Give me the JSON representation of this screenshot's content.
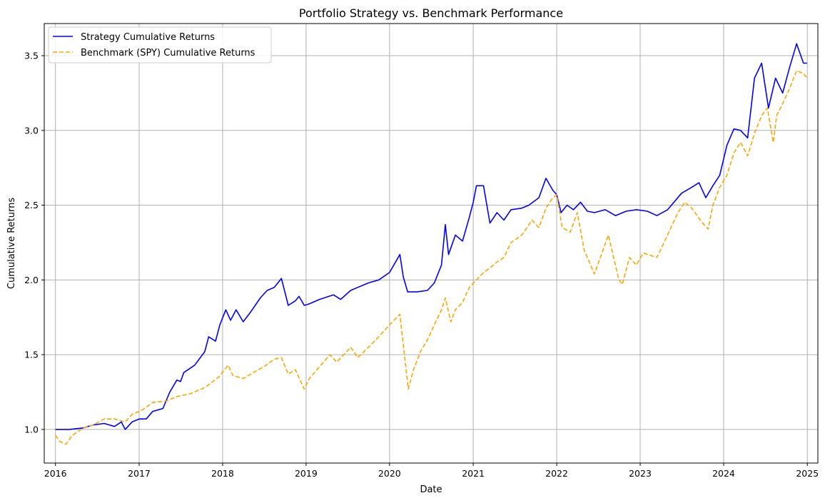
{
  "chart_data": {
    "type": "line",
    "title": "Portfolio Strategy vs. Benchmark Performance",
    "xlabel": "Date",
    "ylabel": "Cumulative Returns",
    "xlim": [
      "2015-11-13",
      "2025-02-16"
    ],
    "ylim": [
      0.775,
      3.715
    ],
    "grid": true,
    "legend_position": "upper-left",
    "x_ticks": [
      "2016",
      "2017",
      "2018",
      "2019",
      "2020",
      "2021",
      "2022",
      "2023",
      "2024",
      "2025"
    ],
    "y_ticks": [
      "1.0",
      "1.5",
      "2.0",
      "2.5",
      "3.0",
      "3.5"
    ],
    "series": [
      {
        "name": "Strategy Cumulative Returns",
        "color": "#0000ff",
        "style": "solid",
        "points": [
          [
            "2016-01-01",
            1.0
          ],
          [
            "2016-03-01",
            1.0
          ],
          [
            "2016-05-01",
            1.01
          ],
          [
            "2016-06-15",
            1.03
          ],
          [
            "2016-08-01",
            1.04
          ],
          [
            "2016-09-15",
            1.02
          ],
          [
            "2016-10-15",
            1.05
          ],
          [
            "2016-11-01",
            1.0
          ],
          [
            "2016-12-01",
            1.05
          ],
          [
            "2017-01-01",
            1.07
          ],
          [
            "2017-02-01",
            1.07
          ],
          [
            "2017-03-01",
            1.12
          ],
          [
            "2017-04-15",
            1.14
          ],
          [
            "2017-05-15",
            1.25
          ],
          [
            "2017-06-15",
            1.33
          ],
          [
            "2017-07-01",
            1.32
          ],
          [
            "2017-07-15",
            1.38
          ],
          [
            "2017-09-01",
            1.43
          ],
          [
            "2017-10-15",
            1.52
          ],
          [
            "2017-11-01",
            1.62
          ],
          [
            "2017-12-01",
            1.59
          ],
          [
            "2017-12-20",
            1.7
          ],
          [
            "2018-01-15",
            1.8
          ],
          [
            "2018-02-05",
            1.73
          ],
          [
            "2018-03-01",
            1.8
          ],
          [
            "2018-04-01",
            1.72
          ],
          [
            "2018-05-01",
            1.78
          ],
          [
            "2018-06-15",
            1.88
          ],
          [
            "2018-07-15",
            1.93
          ],
          [
            "2018-08-15",
            1.95
          ],
          [
            "2018-09-15",
            2.01
          ],
          [
            "2018-10-15",
            1.83
          ],
          [
            "2018-11-15",
            1.86
          ],
          [
            "2018-12-01",
            1.89
          ],
          [
            "2018-12-24",
            1.83
          ],
          [
            "2019-01-15",
            1.84
          ],
          [
            "2019-03-01",
            1.87
          ],
          [
            "2019-05-01",
            1.9
          ],
          [
            "2019-06-01",
            1.87
          ],
          [
            "2019-07-15",
            1.93
          ],
          [
            "2019-08-15",
            1.95
          ],
          [
            "2019-10-01",
            1.98
          ],
          [
            "2019-11-15",
            2.0
          ],
          [
            "2020-01-01",
            2.05
          ],
          [
            "2020-02-15",
            2.17
          ],
          [
            "2020-03-01",
            2.02
          ],
          [
            "2020-03-20",
            1.92
          ],
          [
            "2020-05-01",
            1.92
          ],
          [
            "2020-06-15",
            1.93
          ],
          [
            "2020-07-15",
            1.98
          ],
          [
            "2020-08-15",
            2.1
          ],
          [
            "2020-09-01",
            2.37
          ],
          [
            "2020-09-15",
            2.17
          ],
          [
            "2020-10-15",
            2.3
          ],
          [
            "2020-11-15",
            2.26
          ],
          [
            "2020-12-15",
            2.42
          ],
          [
            "2021-01-01",
            2.52
          ],
          [
            "2021-01-15",
            2.63
          ],
          [
            "2021-02-15",
            2.63
          ],
          [
            "2021-03-15",
            2.38
          ],
          [
            "2021-04-15",
            2.45
          ],
          [
            "2021-05-15",
            2.4
          ],
          [
            "2021-06-15",
            2.47
          ],
          [
            "2021-08-01",
            2.48
          ],
          [
            "2021-09-01",
            2.5
          ],
          [
            "2021-10-15",
            2.55
          ],
          [
            "2021-11-15",
            2.68
          ],
          [
            "2021-12-15",
            2.6
          ],
          [
            "2022-01-01",
            2.57
          ],
          [
            "2022-01-20",
            2.45
          ],
          [
            "2022-02-15",
            2.5
          ],
          [
            "2022-03-15",
            2.47
          ],
          [
            "2022-04-15",
            2.52
          ],
          [
            "2022-05-15",
            2.46
          ],
          [
            "2022-06-15",
            2.45
          ],
          [
            "2022-08-01",
            2.47
          ],
          [
            "2022-09-15",
            2.43
          ],
          [
            "2022-11-01",
            2.46
          ],
          [
            "2022-12-15",
            2.47
          ],
          [
            "2023-02-01",
            2.46
          ],
          [
            "2023-03-15",
            2.43
          ],
          [
            "2023-05-01",
            2.47
          ],
          [
            "2023-07-01",
            2.58
          ],
          [
            "2023-08-15",
            2.62
          ],
          [
            "2023-09-15",
            2.65
          ],
          [
            "2023-10-15",
            2.55
          ],
          [
            "2023-11-15",
            2.63
          ],
          [
            "2023-12-15",
            2.7
          ],
          [
            "2024-01-15",
            2.9
          ],
          [
            "2024-02-15",
            3.01
          ],
          [
            "2024-03-15",
            3.0
          ],
          [
            "2024-04-15",
            2.95
          ],
          [
            "2024-05-15",
            3.35
          ],
          [
            "2024-06-15",
            3.45
          ],
          [
            "2024-07-15",
            3.15
          ],
          [
            "2024-08-15",
            3.35
          ],
          [
            "2024-09-15",
            3.25
          ],
          [
            "2024-10-15",
            3.42
          ],
          [
            "2024-11-15",
            3.58
          ],
          [
            "2024-12-15",
            3.45
          ],
          [
            "2024-12-31",
            3.45
          ]
        ]
      },
      {
        "name": "Benchmark (SPY) Cumulative Returns",
        "color": "#ffa500",
        "style": "dashed",
        "points": [
          [
            "2016-01-01",
            0.96
          ],
          [
            "2016-01-20",
            0.92
          ],
          [
            "2016-02-15",
            0.9
          ],
          [
            "2016-03-15",
            0.96
          ],
          [
            "2016-05-01",
            1.01
          ],
          [
            "2016-06-15",
            1.03
          ],
          [
            "2016-08-01",
            1.07
          ],
          [
            "2016-09-15",
            1.07
          ],
          [
            "2016-11-01",
            1.05
          ],
          [
            "2016-12-01",
            1.1
          ],
          [
            "2017-01-15",
            1.13
          ],
          [
            "2017-03-01",
            1.18
          ],
          [
            "2017-05-01",
            1.19
          ],
          [
            "2017-06-15",
            1.22
          ],
          [
            "2017-08-15",
            1.24
          ],
          [
            "2017-10-15",
            1.28
          ],
          [
            "2017-12-15",
            1.35
          ],
          [
            "2018-01-25",
            1.43
          ],
          [
            "2018-02-15",
            1.36
          ],
          [
            "2018-04-01",
            1.34
          ],
          [
            "2018-05-15",
            1.38
          ],
          [
            "2018-07-01",
            1.42
          ],
          [
            "2018-08-15",
            1.47
          ],
          [
            "2018-09-15",
            1.48
          ],
          [
            "2018-10-15",
            1.37
          ],
          [
            "2018-11-15",
            1.4
          ],
          [
            "2018-12-24",
            1.27
          ],
          [
            "2019-01-15",
            1.34
          ],
          [
            "2019-03-01",
            1.42
          ],
          [
            "2019-04-15",
            1.5
          ],
          [
            "2019-05-15",
            1.45
          ],
          [
            "2019-07-15",
            1.55
          ],
          [
            "2019-08-15",
            1.48
          ],
          [
            "2019-10-01",
            1.55
          ],
          [
            "2019-11-15",
            1.62
          ],
          [
            "2020-01-01",
            1.7
          ],
          [
            "2020-02-15",
            1.77
          ],
          [
            "2020-03-23",
            1.27
          ],
          [
            "2020-04-15",
            1.4
          ],
          [
            "2020-05-15",
            1.52
          ],
          [
            "2020-06-15",
            1.6
          ],
          [
            "2020-07-15",
            1.7
          ],
          [
            "2020-08-15",
            1.8
          ],
          [
            "2020-09-01",
            1.88
          ],
          [
            "2020-09-25",
            1.72
          ],
          [
            "2020-10-15",
            1.8
          ],
          [
            "2020-11-15",
            1.85
          ],
          [
            "2020-12-15",
            1.95
          ],
          [
            "2021-01-15",
            2.0
          ],
          [
            "2021-02-15",
            2.05
          ],
          [
            "2021-03-15",
            2.08
          ],
          [
            "2021-04-15",
            2.12
          ],
          [
            "2021-05-15",
            2.15
          ],
          [
            "2021-06-15",
            2.25
          ],
          [
            "2021-08-01",
            2.3
          ],
          [
            "2021-09-15",
            2.4
          ],
          [
            "2021-10-15",
            2.35
          ],
          [
            "2021-11-15",
            2.48
          ],
          [
            "2021-12-15",
            2.55
          ],
          [
            "2022-01-01",
            2.57
          ],
          [
            "2022-01-25",
            2.35
          ],
          [
            "2022-03-01",
            2.32
          ],
          [
            "2022-04-01",
            2.45
          ],
          [
            "2022-05-01",
            2.2
          ],
          [
            "2022-06-15",
            2.04
          ],
          [
            "2022-08-15",
            2.3
          ],
          [
            "2022-09-30",
            2.0
          ],
          [
            "2022-10-15",
            1.97
          ],
          [
            "2022-11-15",
            2.15
          ],
          [
            "2022-12-15",
            2.1
          ],
          [
            "2023-01-15",
            2.18
          ],
          [
            "2023-03-15",
            2.15
          ],
          [
            "2023-04-15",
            2.25
          ],
          [
            "2023-06-15",
            2.45
          ],
          [
            "2023-07-15",
            2.52
          ],
          [
            "2023-08-15",
            2.48
          ],
          [
            "2023-10-01",
            2.38
          ],
          [
            "2023-10-25",
            2.34
          ],
          [
            "2023-11-15",
            2.5
          ],
          [
            "2023-12-15",
            2.62
          ],
          [
            "2024-01-15",
            2.7
          ],
          [
            "2024-02-15",
            2.85
          ],
          [
            "2024-03-15",
            2.92
          ],
          [
            "2024-04-15",
            2.83
          ],
          [
            "2024-05-15",
            2.98
          ],
          [
            "2024-06-15",
            3.1
          ],
          [
            "2024-07-10",
            3.15
          ],
          [
            "2024-08-05",
            2.92
          ],
          [
            "2024-08-20",
            3.1
          ],
          [
            "2024-09-15",
            3.18
          ],
          [
            "2024-10-15",
            3.28
          ],
          [
            "2024-11-15",
            3.4
          ],
          [
            "2024-12-15",
            3.38
          ],
          [
            "2024-12-31",
            3.35
          ]
        ]
      }
    ]
  }
}
